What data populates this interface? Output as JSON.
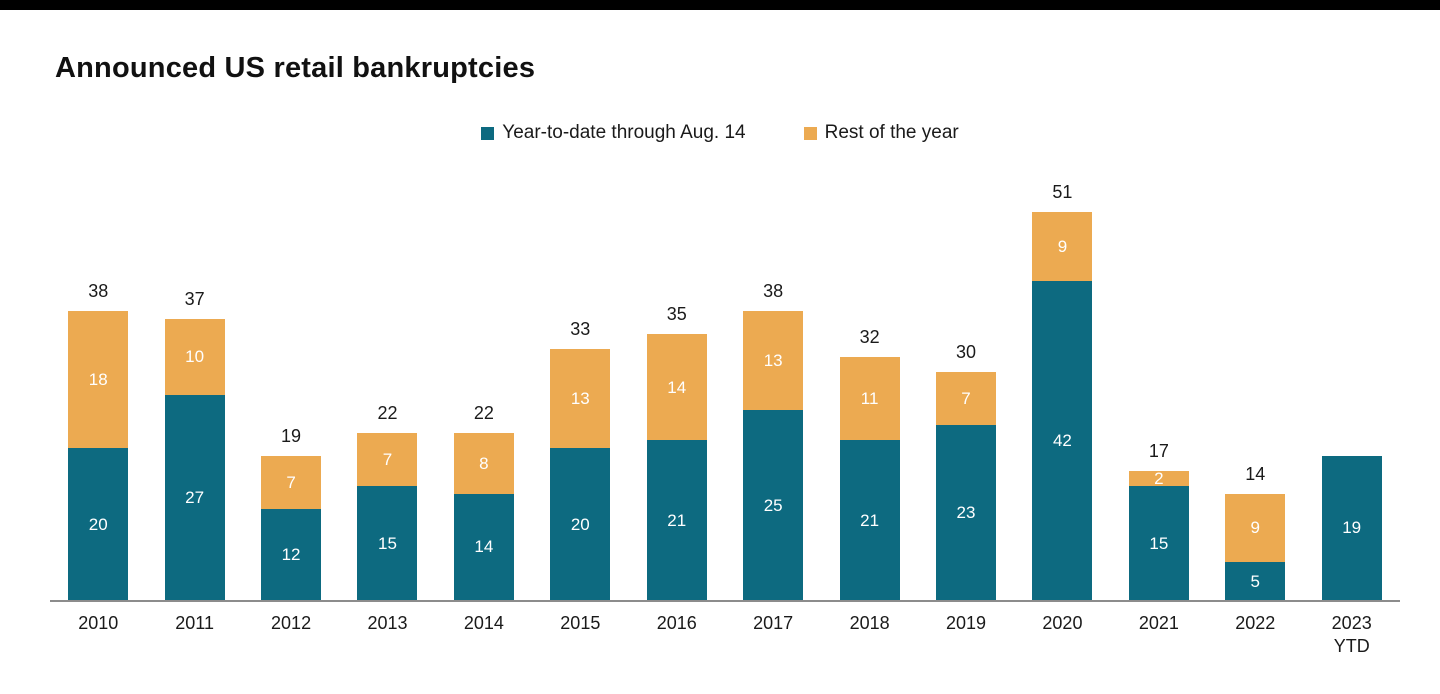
{
  "chart_data": {
    "type": "bar",
    "stacked": true,
    "title": "Announced US retail bankruptcies",
    "legend_position": "top",
    "grid": false,
    "ylim": [
      0,
      55
    ],
    "categories": [
      "2010",
      "2011",
      "2012",
      "2013",
      "2014",
      "2015",
      "2016",
      "2017",
      "2018",
      "2019",
      "2020",
      "2021",
      "2022",
      "2023\nYTD"
    ],
    "series": [
      {
        "name": "Year-to-date through Aug. 14",
        "color": "#0d6a80",
        "values": [
          20,
          27,
          12,
          15,
          14,
          20,
          21,
          25,
          21,
          23,
          42,
          15,
          5,
          19
        ]
      },
      {
        "name": "Rest of the year",
        "color": "#ecaa51",
        "values": [
          18,
          10,
          7,
          7,
          8,
          13,
          14,
          13,
          11,
          7,
          9,
          2,
          9,
          0
        ]
      }
    ],
    "totals": [
      38,
      37,
      19,
      22,
      22,
      33,
      35,
      38,
      32,
      30,
      51,
      17,
      14,
      null
    ]
  },
  "colors": {
    "ytd": "#0d6a80",
    "rest": "#ecaa51",
    "axis": "#8c8c8c",
    "top_strip": "#000000"
  }
}
